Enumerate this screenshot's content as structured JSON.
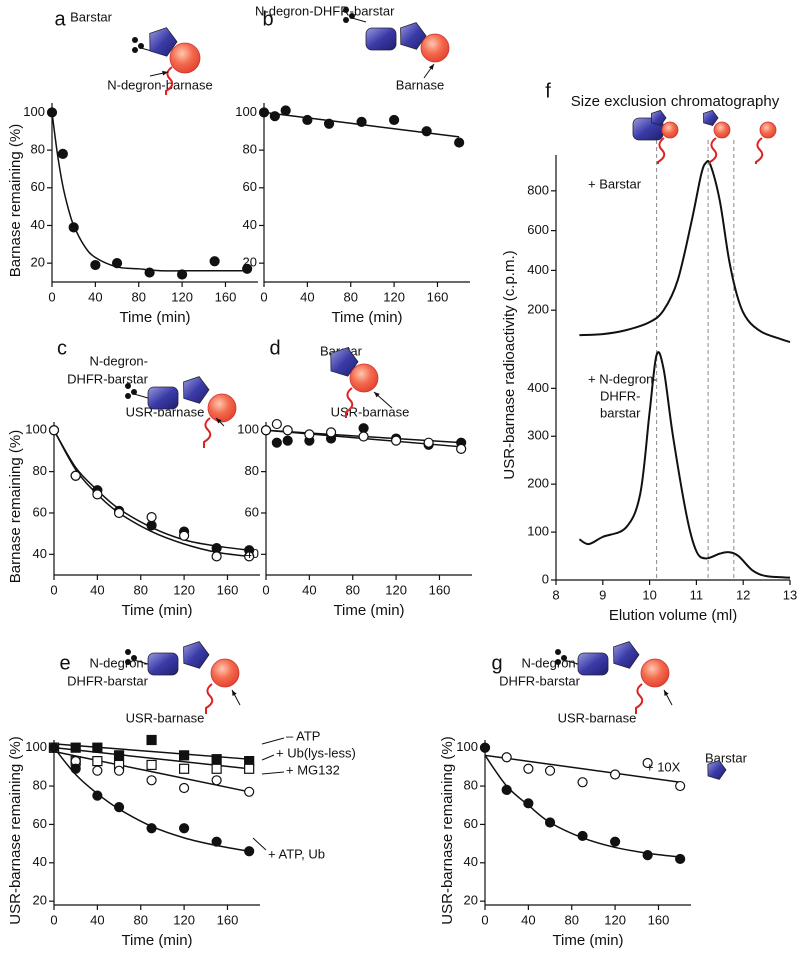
{
  "chart_data": [
    {
      "type": "scatter",
      "panel": "a",
      "annotations": [
        "Barstar",
        "N-degron-barnase"
      ],
      "xlabel": "Time (min)",
      "ylabel": "Barnase remaining (%)",
      "xlim": [
        0,
        190
      ],
      "ylim": [
        10,
        105
      ],
      "xticks": [
        0,
        40,
        80,
        120,
        160
      ],
      "yticks": [
        20,
        40,
        60,
        80,
        100
      ],
      "series": [
        {
          "marker": "filled-circle",
          "color": "#111111",
          "x": [
            0,
            10,
            20,
            40,
            60,
            90,
            120,
            150,
            180
          ],
          "values": [
            100,
            78,
            39,
            19,
            20,
            15,
            14,
            21,
            17
          ]
        }
      ],
      "fits": [
        {
          "color": "#111111",
          "x": [
            0,
            5,
            10,
            15,
            20,
            30,
            40,
            60,
            80,
            100,
            140,
            180
          ],
          "values": [
            100,
            78,
            61,
            49,
            40,
            29,
            23,
            18,
            17,
            16,
            16,
            16
          ]
        }
      ]
    },
    {
      "type": "scatter",
      "panel": "b",
      "annotations": [
        "N-degron-DHFR-barstar",
        "Barnase"
      ],
      "xlabel": "Time (min)",
      "xlim": [
        0,
        190
      ],
      "ylim": [
        10,
        105
      ],
      "xticks": [
        0,
        40,
        80,
        120,
        160
      ],
      "yticks": [
        20,
        40,
        60,
        80,
        100
      ],
      "series": [
        {
          "marker": "filled-circle",
          "color": "#111111",
          "x": [
            0,
            10,
            20,
            40,
            60,
            90,
            120,
            150,
            180
          ],
          "values": [
            100,
            98,
            101,
            96,
            94,
            95,
            96,
            90,
            84
          ]
        }
      ],
      "fits": [
        {
          "color": "#111111",
          "x": [
            0,
            180
          ],
          "values": [
            100,
            87
          ]
        }
      ]
    },
    {
      "type": "scatter",
      "panel": "c",
      "annotations": [
        "N-degron-",
        "DHFR-barstar",
        "USR-barnase"
      ],
      "xlabel": "Time (min)",
      "ylabel": "Barnase remaining (%)",
      "xlim": [
        0,
        190
      ],
      "ylim": [
        30,
        104
      ],
      "xticks": [
        0,
        40,
        80,
        120,
        160
      ],
      "yticks": [
        40,
        60,
        80,
        100
      ],
      "series": [
        {
          "marker": "filled-circle",
          "color": "#111111",
          "x": [
            0,
            20,
            40,
            60,
            90,
            120,
            150,
            180
          ],
          "values": [
            100,
            78,
            71,
            61,
            54,
            51,
            43,
            42
          ]
        },
        {
          "marker": "open-circle",
          "color": "#111111",
          "x": [
            0,
            20,
            40,
            60,
            90,
            120,
            150,
            180
          ],
          "values": [
            100,
            78,
            69,
            60,
            58,
            49,
            39,
            39
          ]
        }
      ],
      "fits": [
        {
          "color": "#111111",
          "x": [
            0,
            20,
            40,
            60,
            90,
            120,
            150,
            180
          ],
          "values": [
            100,
            82,
            71,
            62,
            53,
            47,
            44,
            42
          ]
        },
        {
          "color": "#111111",
          "x": [
            0,
            20,
            40,
            60,
            90,
            120,
            150,
            180
          ],
          "values": [
            100,
            81,
            69,
            60,
            51,
            45,
            41,
            39
          ]
        }
      ]
    },
    {
      "type": "scatter",
      "panel": "d",
      "annotations": [
        "Barstar",
        "USR-barnase"
      ],
      "xlabel": "Time (min)",
      "xlim": [
        0,
        190
      ],
      "ylim": [
        30,
        104
      ],
      "xticks": [
        0,
        40,
        80,
        120,
        160
      ],
      "yticks": [
        40,
        60,
        80,
        100
      ],
      "series": [
        {
          "marker": "filled-circle",
          "color": "#111111",
          "x": [
            0,
            10,
            20,
            40,
            60,
            90,
            120,
            150,
            180
          ],
          "values": [
            100,
            94,
            95,
            95,
            96,
            101,
            96,
            93,
            94
          ]
        },
        {
          "marker": "open-circle",
          "color": "#111111",
          "x": [
            0,
            10,
            20,
            40,
            60,
            90,
            120,
            150,
            180
          ],
          "values": [
            100,
            103,
            100,
            98,
            99,
            97,
            95,
            94,
            91
          ]
        }
      ],
      "fits": [
        {
          "color": "#111111",
          "x": [
            0,
            180
          ],
          "values": [
            100,
            94
          ]
        },
        {
          "color": "#111111",
          "x": [
            0,
            180
          ],
          "values": [
            100,
            92
          ]
        }
      ]
    },
    {
      "type": "line",
      "panel": "f",
      "title": "Size exclusion chromatography",
      "annotations": [
        "+ Barstar"
      ],
      "ylabel": "USR-barnase radioactivity (c.p.m.)",
      "xlim": [
        8,
        13
      ],
      "ylim": [
        0,
        980
      ],
      "yticks": [
        200,
        400,
        600,
        800
      ],
      "vlines": [
        10.15,
        11.25,
        11.8
      ],
      "series": [
        {
          "color": "#111111",
          "x": [
            8.5,
            9,
            9.5,
            10,
            10.3,
            10.6,
            10.9,
            11.1,
            11.2,
            11.3,
            11.5,
            11.7,
            11.9,
            12.1,
            12.4,
            12.8,
            13
          ],
          "values": [
            75,
            80,
            100,
            140,
            200,
            350,
            650,
            880,
            940,
            930,
            750,
            450,
            250,
            150,
            90,
            55,
            40
          ]
        }
      ]
    },
    {
      "type": "line",
      "annotations": [
        "+ N-degron-",
        "DHFR-",
        "barstar"
      ],
      "xlabel": "Elution volume (ml)",
      "xlim": [
        8,
        13
      ],
      "ylim": [
        0,
        480
      ],
      "xticks": [
        8,
        9,
        10,
        11,
        12,
        13
      ],
      "yticks": [
        0,
        100,
        200,
        300,
        400
      ],
      "vlines": [
        10.15,
        11.25,
        11.8
      ],
      "series": [
        {
          "color": "#111111",
          "x": [
            8.5,
            8.7,
            9,
            9.5,
            9.8,
            10,
            10.15,
            10.3,
            10.5,
            10.8,
            11,
            11.2,
            11.5,
            11.7,
            11.9,
            12.2,
            12.5,
            13
          ],
          "values": [
            85,
            75,
            90,
            110,
            180,
            350,
            470,
            440,
            300,
            130,
            60,
            45,
            55,
            58,
            50,
            20,
            8,
            5
          ]
        }
      ]
    },
    {
      "type": "scatter",
      "panel": "e",
      "annotations": [
        "N-degron-",
        "DHFR-barstar",
        "USR-barnase"
      ],
      "xlabel": "Time (min)",
      "ylabel": "USR-barnase remaining (%)",
      "xlim": [
        0,
        190
      ],
      "ylim": [
        18,
        104
      ],
      "xticks": [
        0,
        40,
        80,
        120,
        160
      ],
      "yticks": [
        20,
        40,
        60,
        80,
        100
      ],
      "series": [
        {
          "name": "– ATP",
          "marker": "filled-square",
          "color": "#111111",
          "x": [
            0,
            20,
            40,
            60,
            90,
            120,
            150,
            180
          ],
          "values": [
            100,
            100,
            100,
            96,
            104,
            96,
            94,
            93
          ]
        },
        {
          "name": "+ Ub(lys-less)",
          "marker": "open-square",
          "color": "#111111",
          "x": [
            0,
            20,
            40,
            60,
            90,
            120,
            150,
            180
          ],
          "values": [
            100,
            93,
            93,
            91,
            91,
            89,
            89,
            89
          ]
        },
        {
          "name": "+ MG132",
          "marker": "open-circle",
          "color": "#111111",
          "x": [
            0,
            20,
            40,
            60,
            90,
            120,
            150,
            180
          ],
          "values": [
            100,
            93,
            88,
            88,
            83,
            79,
            83,
            77
          ]
        },
        {
          "name": "+ ATP, Ub",
          "marker": "filled-circle",
          "color": "#111111",
          "x": [
            0,
            20,
            40,
            60,
            90,
            120,
            150,
            180
          ],
          "values": [
            100,
            89,
            75,
            69,
            58,
            58,
            51,
            46
          ]
        }
      ],
      "fits": [
        {
          "color": "#111111",
          "x": [
            0,
            180
          ],
          "values": [
            102,
            94
          ]
        },
        {
          "color": "#111111",
          "x": [
            0,
            180
          ],
          "values": [
            100,
            89
          ]
        },
        {
          "color": "#111111",
          "x": [
            0,
            180
          ],
          "values": [
            98,
            77
          ]
        },
        {
          "color": "#111111",
          "x": [
            0,
            20,
            40,
            60,
            90,
            120,
            150,
            180
          ],
          "values": [
            100,
            86,
            76,
            68,
            59,
            53,
            49,
            46
          ]
        }
      ]
    },
    {
      "type": "scatter",
      "panel": "g",
      "annotations": [
        "N-degron-",
        "DHFR-barstar",
        "USR-barnase",
        "Barstar"
      ],
      "xlabel": "Time (min)",
      "ylabel": "USR-barnase remaining (%)",
      "xlim": [
        0,
        190
      ],
      "ylim": [
        18,
        104
      ],
      "xticks": [
        0,
        40,
        80,
        120,
        160
      ],
      "yticks": [
        20,
        40,
        60,
        80,
        100
      ],
      "series": [
        {
          "name": "+ 10X",
          "marker": "open-circle",
          "color": "#111111",
          "x": [
            0,
            20,
            40,
            60,
            90,
            120,
            150,
            180
          ],
          "values": [
            100,
            95,
            89,
            88,
            82,
            86,
            92,
            80
          ]
        },
        {
          "marker": "filled-circle",
          "color": "#111111",
          "x": [
            0,
            20,
            40,
            60,
            90,
            120,
            150,
            180
          ],
          "values": [
            100,
            78,
            71,
            61,
            54,
            51,
            44,
            42
          ]
        }
      ],
      "fits": [
        {
          "color": "#111111",
          "x": [
            0,
            180
          ],
          "values": [
            96,
            82
          ]
        },
        {
          "color": "#111111",
          "x": [
            0,
            20,
            40,
            60,
            90,
            120,
            150,
            180
          ],
          "values": [
            96,
            80,
            70,
            61,
            53,
            48,
            45,
            43
          ]
        }
      ]
    }
  ]
}
